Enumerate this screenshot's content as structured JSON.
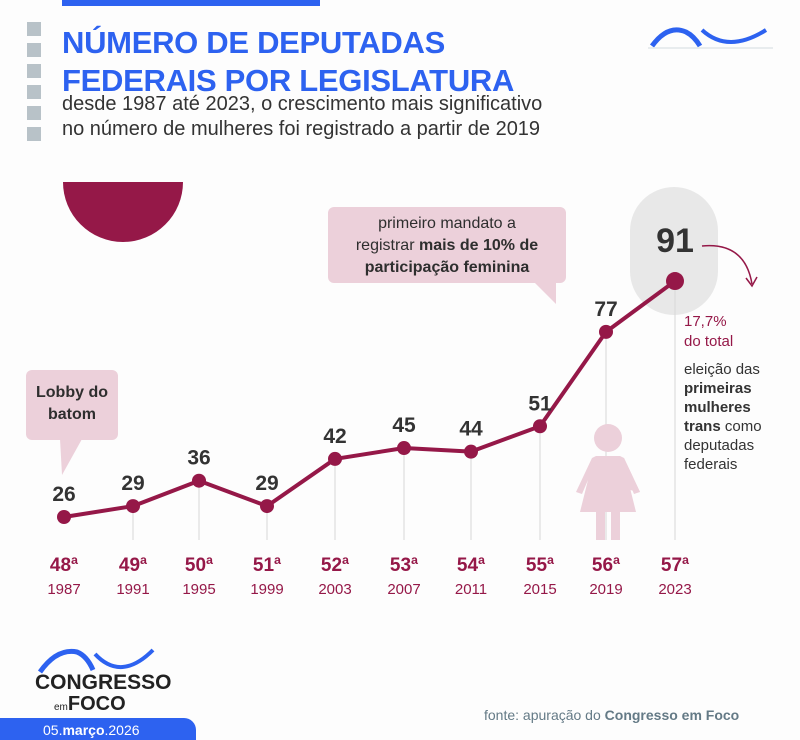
{
  "header": {
    "title_line1": "NÚMERO DE DEPUTADAS",
    "title_line2": "FEDERAIS POR LEGISLATURA",
    "subtitle_line1": "desde 1987 até 2023, o crescimento mais significativo",
    "subtitle_line2": "no número de mulheres foi registrado a partir de 2019"
  },
  "annotations": {
    "lobby": "Lobby do batom",
    "first_mandate_pre": "primeiro mandato a",
    "first_mandate_mid": "registrar ",
    "first_mandate_bold1": "mais de 10% de",
    "first_mandate_bold2": "participação feminina",
    "pct": "17,7%",
    "pct_sub": "do total",
    "trans_1": "eleição das",
    "trans_bold1": "primeiras",
    "trans_bold2": "mulheres",
    "trans_bold3": "trans",
    "trans_2": " como",
    "trans_3": "deputadas",
    "trans_4": "federais"
  },
  "footer": {
    "logo_word1": "CONGRESSO",
    "logo_em": "em",
    "logo_word2": "FOCO",
    "date_day": "05.",
    "date_month": "março",
    "date_year": ".2026",
    "source_pre": "fonte: apuração do ",
    "source_bold": "Congresso em Foco"
  },
  "colors": {
    "accent": "#951848",
    "title_blue": "#2d62f0",
    "bubble": "#ecd0da",
    "label_dark": "#333333"
  },
  "chart_data": {
    "type": "line",
    "categories": [
      "48ª",
      "49ª",
      "50ª",
      "51ª",
      "52ª",
      "53ª",
      "54ª",
      "55ª",
      "56ª",
      "57ª"
    ],
    "years": [
      "1987",
      "1991",
      "1995",
      "1999",
      "2003",
      "2007",
      "2011",
      "2015",
      "2019",
      "2023"
    ],
    "values": [
      26,
      29,
      36,
      29,
      42,
      45,
      44,
      51,
      77,
      91
    ],
    "highlight_index": 9,
    "grid": false
  }
}
